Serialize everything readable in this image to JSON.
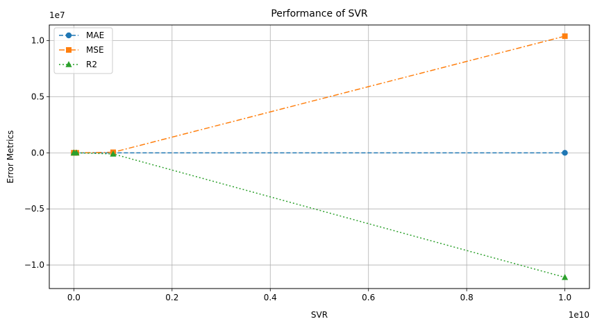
{
  "chart_data": {
    "type": "line",
    "title": "Performance of SVR",
    "xlabel": "SVR",
    "ylabel": "Error Metrics",
    "x_multiplier_label": "1e10",
    "y_multiplier_label": "1e7",
    "x_scale": 10000000000,
    "y_scale": 10000000,
    "xlim": [
      -0.05,
      1.05
    ],
    "ylim": [
      -1.21,
      1.14
    ],
    "x_ticks": [
      0.0,
      0.2,
      0.4,
      0.6,
      0.8,
      1.0
    ],
    "x_tick_labels": [
      "0.0",
      "0.2",
      "0.4",
      "0.6",
      "0.8",
      "1.0"
    ],
    "y_ticks": [
      -1.0,
      -0.5,
      0.0,
      0.5,
      1.0
    ],
    "y_tick_labels": [
      "−1.0",
      "−0.5",
      "0.0",
      "0.5",
      "1.0"
    ],
    "grid": true,
    "legend_position": "upper-left",
    "x": [
      0.0,
      0.0,
      0.005,
      0.08,
      1.0
    ],
    "series": [
      {
        "name": "MAE",
        "color": "#1f77b4",
        "marker": "circle",
        "linestyle": "dashed",
        "values": [
          0.0,
          0.0,
          0.0,
          0.0,
          0.0
        ]
      },
      {
        "name": "MSE",
        "color": "#ff7f0e",
        "marker": "square",
        "linestyle": "dashdot",
        "values": [
          0.0,
          0.0,
          0.0,
          0.005,
          1.04
        ]
      },
      {
        "name": "R2",
        "color": "#2ca02c",
        "marker": "triangle",
        "linestyle": "dotted",
        "values": [
          0.0,
          0.0,
          0.0,
          -0.01,
          -1.11
        ]
      }
    ]
  }
}
